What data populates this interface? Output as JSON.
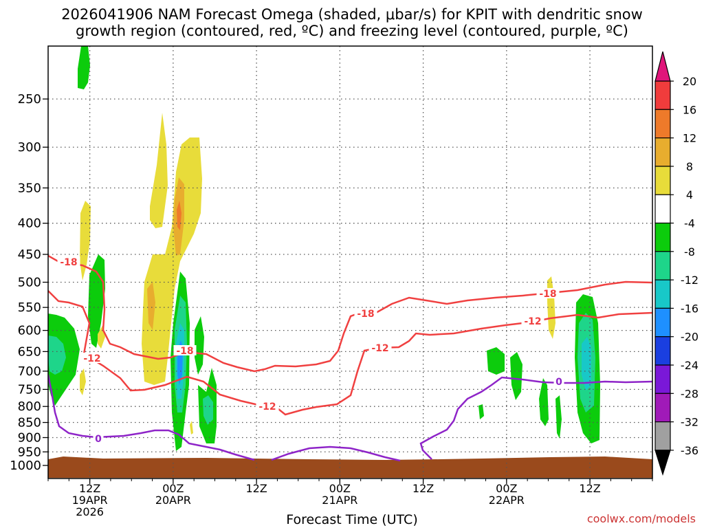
{
  "title_line1": "2026041906 NAM Forecast Omega (shaded, μbar/s) for KPIT with dendritic snow",
  "title_line2": "growth region (contoured, red, ºC) and freezing level (contoured, purple, ºC)",
  "watermark": "coolwx.com/models",
  "chart_data": {
    "type": "heatmap",
    "title": "2026041906 NAM Forecast Omega (shaded, μbar/s) for KPIT with dendritic snow growth region (contoured, red, ºC) and freezing level (contoured, purple, ºC)",
    "xlabel": "Forecast Time (UTC)",
    "ylabel": "",
    "y_scale": "log-pressure",
    "ylim": [
      1000,
      200
    ],
    "y_ticks": [
      250,
      300,
      350,
      400,
      450,
      500,
      550,
      600,
      650,
      700,
      750,
      800,
      850,
      900,
      950,
      1000
    ],
    "xlim": [
      "2026-04-19T06Z",
      "2026-04-22T21Z"
    ],
    "x_ticks": [
      {
        "time": "2026-04-19T12Z",
        "lines": [
          "12Z",
          "19APR",
          "2026"
        ]
      },
      {
        "time": "2026-04-20T00Z",
        "lines": [
          "00Z",
          "20APR"
        ]
      },
      {
        "time": "2026-04-20T12Z",
        "lines": [
          "12Z"
        ]
      },
      {
        "time": "2026-04-21T00Z",
        "lines": [
          "00Z",
          "21APR"
        ]
      },
      {
        "time": "2026-04-21T12Z",
        "lines": [
          "12Z"
        ]
      },
      {
        "time": "2026-04-22T00Z",
        "lines": [
          "00Z",
          "22APR"
        ]
      },
      {
        "time": "2026-04-22T12Z",
        "lines": [
          "12Z"
        ]
      }
    ],
    "grid": true,
    "colorbar": {
      "position": "right",
      "levels": [
        20,
        16,
        12,
        8,
        4,
        -4,
        -8,
        -12,
        -16,
        -20,
        -24,
        -28,
        -32,
        -36
      ],
      "colors": {
        "gt20": "#e0157a",
        "16_20": "#f03c3c",
        "12_16": "#ee7a2a",
        "8_12": "#e8ad2e",
        "4_8": "#e8dc3a",
        "-4_4": "#ffffff",
        "-8_-4": "#0ccc0c",
        "-12_-8": "#1ed58a",
        "-16_-12": "#18c8c8",
        "-20_-16": "#1e90ff",
        "-24_-20": "#1a3fe0",
        "-28_-24": "#7a18d8",
        "-32_-28": "#a01ab8",
        "-36_-32": "#a0a0a0",
        "lt-36": "#000000"
      }
    },
    "contour_labels": {
      "dendritic_snow_growth": [
        "-18",
        "-12"
      ],
      "freezing_level": [
        "0"
      ]
    },
    "colors": {
      "dgz_contour": "#f04040",
      "freezing_contour": "#8e24c8",
      "terrain": "#9a4a1c"
    }
  }
}
